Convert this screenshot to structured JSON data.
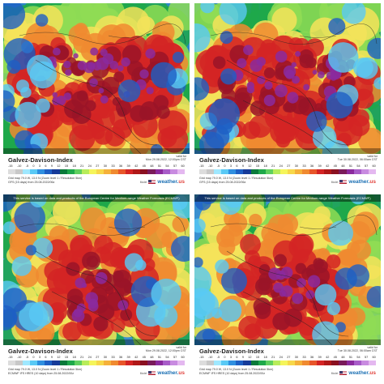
{
  "colors": {
    "scale": [
      "#dcdcdc",
      "#c8c8c8",
      "#9fe8ff",
      "#59c9f5",
      "#2f8fe0",
      "#1e5fc4",
      "#163a99",
      "#0a7a3a",
      "#1ea84a",
      "#5fd05f",
      "#b8ec5a",
      "#f5f55a",
      "#f7d84a",
      "#f5b13a",
      "#f08a30",
      "#e8562a",
      "#d42424",
      "#b01818",
      "#8a1020",
      "#7a1a5a",
      "#8b2a9e",
      "#a85cc8",
      "#c88be0",
      "#e4b8f0"
    ]
  },
  "scale_labels": [
    "-15",
    "-10",
    "-5",
    "0",
    "3",
    "6",
    "9",
    "12",
    "15",
    "18",
    "21",
    "24",
    "27",
    "30",
    "33",
    "36",
    "39",
    "42",
    "45",
    "48",
    "51",
    "54",
    "57",
    "60"
  ],
  "disclaimer": "This service is based on data and products of the European Centre for Medium-range Weather Forecasts (ECMWF)",
  "panels": [
    {
      "title": "Galvez-Davison-Index",
      "valid_label": "valid for",
      "valid_time": "Mon 29.08.2022, 12:00pm CST",
      "grid": "Grid map 79.0 W, 13.0 N (Zoom level 1 / Resolution 5km)",
      "model": "GFS (15 days) from 25.08.2022/06z",
      "show_disclaimer": false,
      "variant": 0
    },
    {
      "title": "Galvez-Davison-Index",
      "valid_label": "valid for",
      "valid_time": "Tue 30.08.2022, 06:00am CST",
      "grid": "Grid map 79.0 W, 13.0 N (Zoom level 1 / Resolution 5km)",
      "model": "GFS (15 days) from 25.08.2022/06z",
      "show_disclaimer": false,
      "variant": 1
    },
    {
      "title": "Galvez-Davison-Index",
      "valid_label": "valid for",
      "valid_time": "Mon 29.08.2022, 12:00pm CST",
      "grid": "Grid map 79.0 W, 13.0 N (Zoom level 1 / Resolution 5km)",
      "model": "ECMWF IFS HRES (10 days) from 25.08.2022/00z",
      "show_disclaimer": true,
      "variant": 2
    },
    {
      "title": "Galvez-Davison-Index",
      "valid_label": "valid for",
      "valid_time": "Tue 30.08.2022, 06:00am CST",
      "grid": "Grid map 79.0 W, 13.0 N (Zoom level 1 / Resolution 5km)",
      "model": "ECMWF IFS HRES (10 days) from 25.08.2022/00z",
      "show_disclaimer": true,
      "variant": 3
    }
  ],
  "brand": {
    "model_label": "Model",
    "logo_main": "weather.",
    "logo_tld": "us"
  }
}
